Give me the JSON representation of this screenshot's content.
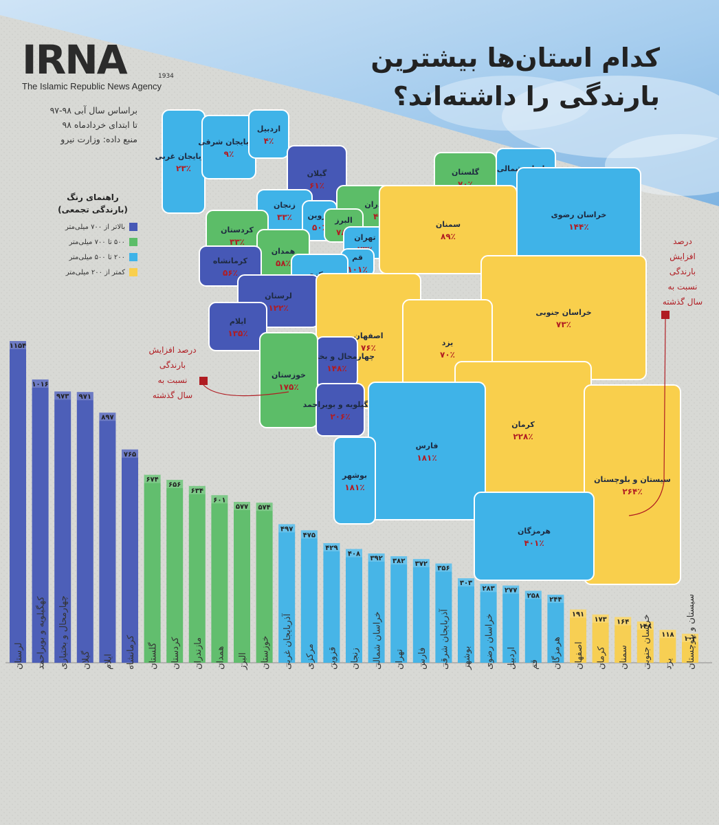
{
  "header": {
    "logo": "IRNA",
    "logo_year": "1934",
    "agency": "The Islamic Republic News Agency",
    "title_line1": "کدام استان‌ها بیشترین",
    "title_line2": "بارندگی را داشته‌اند؟",
    "source_line1": "براساس سال آبی ۹۸-۹۷",
    "source_line2": "تا ابتدای خردادماه ۹۸",
    "source_line3": "منبع داده: وزارت نیرو"
  },
  "legend": {
    "title_line1": "راهنمای رنگ",
    "title_line2": "(بارندگی تجمعی)",
    "items": [
      {
        "label": "بالاتر از ۷۰۰ میلی‌متر",
        "color": "#4658b6"
      },
      {
        "label": "۵۰۰ تا ۷۰۰ میلی‌متر",
        "color": "#5cbd68"
      },
      {
        "label": "۲۰۰ تا ۵۰۰ میلی‌متر",
        "color": "#3fb3e8"
      },
      {
        "label": "کمتر از ۲۰۰ میلی‌متر",
        "color": "#f9cf4c"
      }
    ]
  },
  "notes": {
    "left": [
      "درصد افزایش",
      "بارندگی",
      "نسبت به",
      "سال گذشته"
    ],
    "right": [
      "درصد",
      "افزایش",
      "بارندگی",
      "نسبت به",
      "سال گذشته"
    ]
  },
  "map_regions": [
    {
      "name": "آذربایجان غربی",
      "pct": "۲۳٪",
      "tier": 2
    },
    {
      "name": "آذربایجان شرقی",
      "pct": "۹٪",
      "tier": 2
    },
    {
      "name": "اردبیل",
      "pct": "۴٪",
      "tier": 2
    },
    {
      "name": "گیلان",
      "pct": "۶۱٪",
      "tier": 0
    },
    {
      "name": "گلستان",
      "pct": "۷۰٪",
      "tier": 1
    },
    {
      "name": "خراسان شمالی",
      "pct": "۱۳۷٪",
      "tier": 2
    },
    {
      "name": "زنجان",
      "pct": "۳۳٪",
      "tier": 2
    },
    {
      "name": "قزوین",
      "pct": "۵۰٪",
      "tier": 2
    },
    {
      "name": "مازندران",
      "pct": "۴۹٪",
      "tier": 1
    },
    {
      "name": "البرز",
      "pct": "۷۸٪",
      "tier": 1
    },
    {
      "name": "خراسان رضوی",
      "pct": "۱۴۴٪",
      "tier": 2
    },
    {
      "name": "کردستان",
      "pct": "۳۳٪",
      "tier": 1
    },
    {
      "name": "تهران",
      "pct": "۷۳٪",
      "tier": 2
    },
    {
      "name": "قم",
      "pct": "۱۰۱٪",
      "tier": 2
    },
    {
      "name": "سمنان",
      "pct": "۸۹٪",
      "tier": 3
    },
    {
      "name": "همدان",
      "pct": "۵۸٪",
      "tier": 1
    },
    {
      "name": "کرمانشاه",
      "pct": "۵۶٪",
      "tier": 0
    },
    {
      "name": "مرکزی",
      "pct": "۱۱۸٪",
      "tier": 2
    },
    {
      "name": "لرستان",
      "pct": "۱۲۲٪",
      "tier": 0
    },
    {
      "name": "ایلام",
      "pct": "۱۳۵٪",
      "tier": 0
    },
    {
      "name": "اصفهان",
      "pct": "۷۶٪",
      "tier": 3
    },
    {
      "name": "خراسان جنوبی",
      "pct": "۷۳٪",
      "tier": 3
    },
    {
      "name": "چهارمحال و بختیاری",
      "pct": "۱۴۸٪",
      "tier": 0
    },
    {
      "name": "خوزستان",
      "pct": "۱۷۵٪",
      "tier": 1
    },
    {
      "name": "یزد",
      "pct": "۷۰٪",
      "tier": 3
    },
    {
      "name": "کهگیلویه و بویراحمد",
      "pct": "۲۰۶٪",
      "tier": 0
    },
    {
      "name": "کرمان",
      "pct": "۲۲۸٪",
      "tier": 3
    },
    {
      "name": "فارس",
      "pct": "۱۸۱٪",
      "tier": 2
    },
    {
      "name": "بوشهر",
      "pct": "۱۸۱٪",
      "tier": 2
    },
    {
      "name": "سیستان و بلوچستان",
      "pct": "۲۶۴٪",
      "tier": 3
    },
    {
      "name": "هرمزگان",
      "pct": "۴۰۱٪",
      "tier": 2
    }
  ],
  "chart_data": {
    "type": "bar",
    "categories": [
      "لرستان",
      "کهگیلویه و بویراحمد",
      "چهارمحال و بختیاری",
      "گیلان",
      "ایلام",
      "کرمانشاه",
      "گلستان",
      "کردستان",
      "مازندران",
      "همدان",
      "البرز",
      "خوزستان",
      "آذربایجان غربی",
      "مرکزی",
      "قزوین",
      "زنجان",
      "خراسان شمالی",
      "تهران",
      "فارس",
      "آذربایجان شرقی",
      "بوشهر",
      "خراسان رضوی",
      "اردبیل",
      "قم",
      "هرمزگان",
      "اصفهان",
      "کرمان",
      "سمنان",
      "خراسان جنوبی",
      "یزد",
      "سیستان و بلوچستان"
    ],
    "values": [
      1154,
      1016,
      973,
      971,
      897,
      765,
      674,
      656,
      634,
      601,
      577,
      574,
      497,
      475,
      429,
      408,
      392,
      382,
      372,
      356,
      303,
      283,
      277,
      258,
      244,
      191,
      173,
      164,
      148,
      118,
      104
    ],
    "value_labels": [
      "۱۱۵۴",
      "۱۰۱۶",
      "۹۷۳",
      "۹۷۱",
      "۸۹۷",
      "۷۶۵",
      "۶۷۴",
      "۶۵۶",
      "۶۳۴",
      "۶۰۱",
      "۵۷۷",
      "۵۷۴",
      "۴۹۷",
      "۴۷۵",
      "۴۲۹",
      "۴۰۸",
      "۳۹۲",
      "۳۸۲",
      "۳۷۲",
      "۳۵۶",
      "۳۰۳",
      "۲۸۳",
      "۲۷۷",
      "۲۵۸",
      "۲۴۴",
      "۱۹۱",
      "۱۷۳",
      "۱۶۴",
      "۱۴۸",
      "۱۱۸",
      "۱۰۴"
    ],
    "tiers": [
      0,
      0,
      0,
      0,
      0,
      0,
      1,
      1,
      1,
      1,
      1,
      1,
      2,
      2,
      2,
      2,
      2,
      2,
      2,
      2,
      2,
      2,
      2,
      2,
      2,
      3,
      3,
      3,
      3,
      3,
      3
    ],
    "tier_colors": [
      "#4658b6",
      "#5cbd68",
      "#3fb3e8",
      "#f9cf4c"
    ],
    "ylim": [
      0,
      1200
    ],
    "grid": false
  }
}
